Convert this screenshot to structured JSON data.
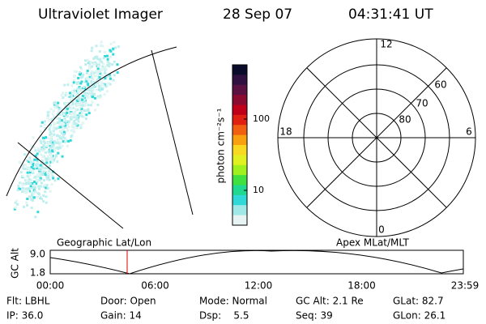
{
  "header": {
    "title": "Ultraviolet Imager",
    "date": "28 Sep 07",
    "time": "04:31:41 UT"
  },
  "colorbar": {
    "label": "photon cm⁻²s⁻¹",
    "ticks": [
      "100",
      "10"
    ]
  },
  "polar": {
    "mlt_labels": [
      "12",
      "18",
      "6",
      "0"
    ],
    "lat_labels": [
      "60",
      "70",
      "80"
    ]
  },
  "timeline": {
    "axis_label": "GC Alt",
    "y_labels": [
      "9.0",
      "1.8"
    ],
    "left_title": "Geographic Lat/Lon",
    "right_title": "Apex MLat/MLT",
    "time_labels": [
      "00:00",
      "06:00",
      "12:00",
      "18:00",
      "23:59"
    ]
  },
  "info": {
    "rows": [
      [
        "Flt: LBHL",
        "Door: Open",
        "Mode: Normal",
        "GC Alt: 2.1 Re",
        "GLat: 82.7"
      ],
      [
        "IP: 36.0",
        "Gain: 14",
        "Dsp:    5.5",
        "Seq: 39",
        "GLon: 26.1"
      ]
    ]
  }
}
